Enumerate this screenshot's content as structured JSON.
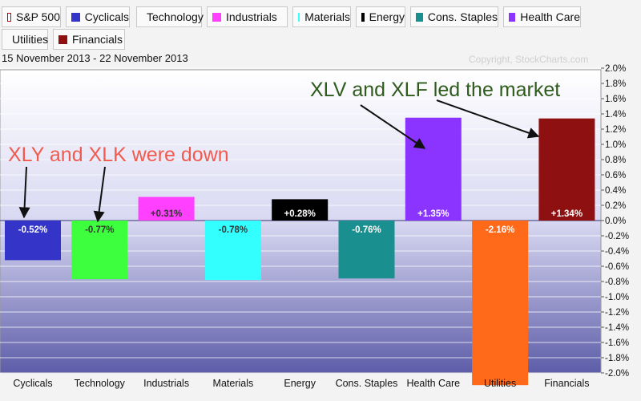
{
  "legend": [
    {
      "label": "S&P 500",
      "color": "#ffffff",
      "border": "#cc0000",
      "interactable": true
    },
    {
      "label": "Cyclicals",
      "color": "#3434c9"
    },
    {
      "label": "Technology",
      "color": "#3dff3d"
    },
    {
      "label": "Industrials",
      "color": "#ff40ff"
    },
    {
      "label": "Materials",
      "color": "#33ffff"
    },
    {
      "label": "Energy",
      "color": "#000000"
    },
    {
      "label": "Cons. Staples",
      "color": "#1a8f8f"
    },
    {
      "label": "Health Care",
      "color": "#8b33ff"
    },
    {
      "label": "Utilities",
      "color": "#ff6a1a"
    },
    {
      "label": "Financials",
      "color": "#8e1010"
    }
  ],
  "subtitle": "15 November 2013 - 22 November 2013",
  "copyright": "Copyright, StockCharts.com",
  "annotations": {
    "down": "XLY and XLK were down",
    "led": "XLV and XLF led the market"
  },
  "colors": {
    "annotation_down": "#f25a4e",
    "annotation_led": "#2f5b1c"
  },
  "chart_data": {
    "type": "bar",
    "categories": [
      "Cyclicals",
      "Technology",
      "Industrials",
      "Materials",
      "Energy",
      "Cons. Staples",
      "Health Care",
      "Utilities",
      "Financials"
    ],
    "values": [
      -0.52,
      -0.77,
      0.31,
      -0.78,
      0.28,
      -0.76,
      1.35,
      -2.16,
      1.34
    ],
    "value_labels": [
      "-0.52%",
      "-0.77%",
      "+0.31%",
      "-0.78%",
      "+0.28%",
      "-0.76%",
      "+1.35%",
      "-2.16%",
      "+1.34%"
    ],
    "colors": [
      "#3434c9",
      "#3dff3d",
      "#ff40ff",
      "#33ffff",
      "#000000",
      "#1a8f8f",
      "#8b33ff",
      "#ff6a1a",
      "#8e1010"
    ],
    "label_colors": [
      "#ffffff",
      "#333333",
      "#333333",
      "#333333",
      "#ffffff",
      "#ffffff",
      "#ffffff",
      "#ffffff",
      "#ffffff"
    ],
    "ylim": [
      -2.16,
      2.0
    ],
    "yticks": [
      2.0,
      1.8,
      1.6,
      1.4,
      1.2,
      1.0,
      0.8,
      0.6,
      0.4,
      0.2,
      0.0,
      -0.2,
      -0.4,
      -0.6,
      -0.8,
      -1.0,
      -1.2,
      -1.4,
      -1.6,
      -1.8,
      -2.0
    ],
    "ytick_labels": [
      "2.0%",
      "1.8%",
      "1.6%",
      "1.4%",
      "1.2%",
      "1.0%",
      "0.8%",
      "0.6%",
      "0.4%",
      "0.2%",
      "0.0%",
      "-0.2%",
      "-0.4%",
      "-0.6%",
      "-0.8%",
      "-1.0%",
      "-1.2%",
      "-1.4%",
      "-1.6%",
      "-1.8%",
      "-2.0%"
    ],
    "grid": true,
    "y_axis_side": "right"
  }
}
